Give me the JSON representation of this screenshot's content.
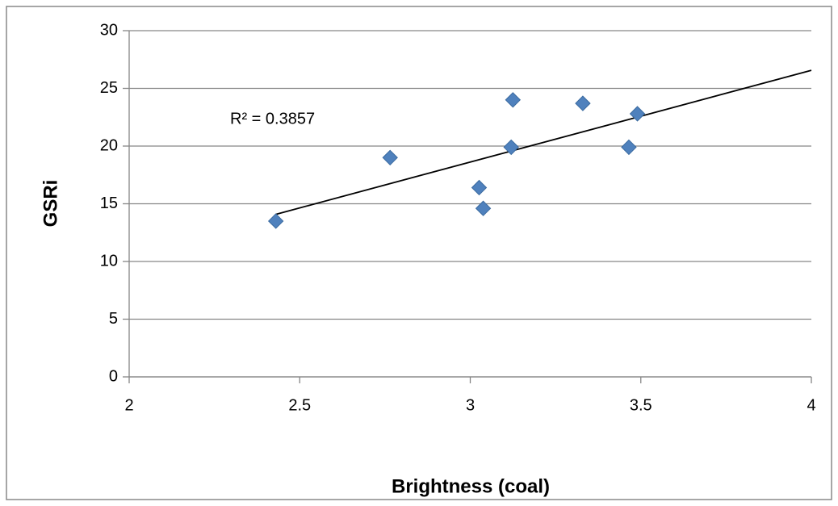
{
  "chart_data": {
    "type": "scatter",
    "x_label": "Brightness (coal)",
    "y_label": "GSRi",
    "annotation": "R² = 0.3857",
    "x": [
      2.43,
      2.765,
      3.026,
      3.038,
      3.125,
      3.12,
      3.33,
      3.465,
      3.49
    ],
    "values": [
      13.5,
      19,
      16.4,
      14.6,
      24,
      19.9,
      23.7,
      19.9,
      22.8
    ],
    "color": "#4f81bd",
    "trendline": true,
    "xlim": [
      2,
      4
    ],
    "xticks": [
      2,
      2.5,
      3,
      3.5,
      4
    ],
    "ylim": [
      0,
      30
    ],
    "yticks": [
      0,
      5,
      10,
      15,
      20,
      25,
      30
    ],
    "grid": true
  }
}
